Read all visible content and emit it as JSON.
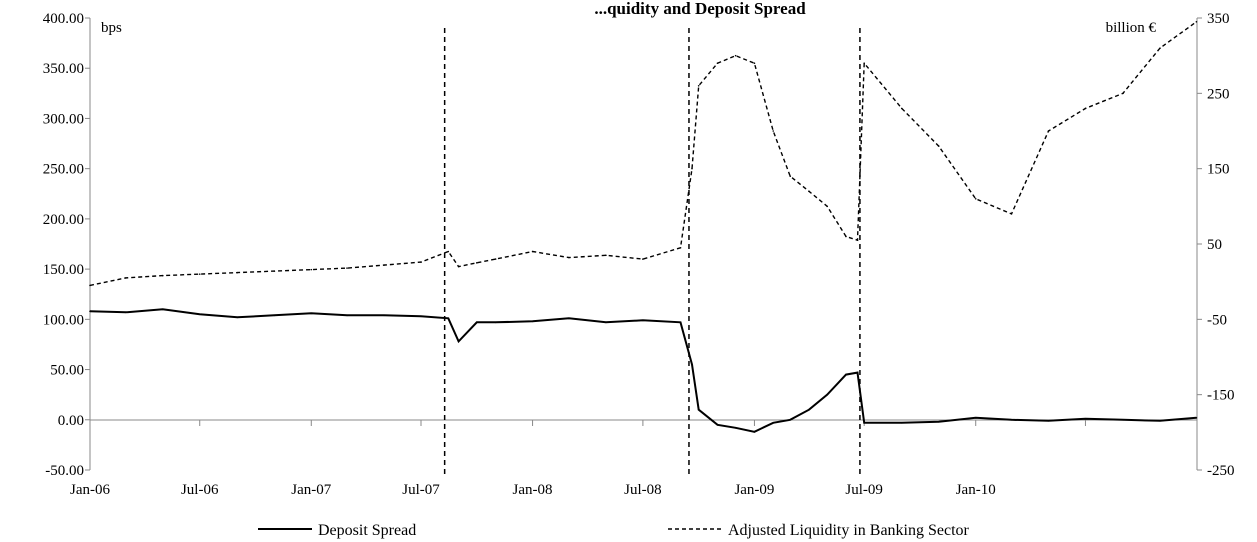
{
  "chart_data": {
    "type": "line",
    "title": "...quidity and Deposit Spread",
    "y_left_unit": "bps",
    "y_right_unit": "billion €",
    "y_left_ticks": [
      "400.00",
      "350.00",
      "300.00",
      "250.00",
      "200.00",
      "150.00",
      "100.00",
      "50.00",
      "0.00",
      "-50.00"
    ],
    "y_right_ticks": [
      "350",
      "250",
      "150",
      "50",
      "-50",
      "-150",
      "-250"
    ],
    "x_tick_labels": [
      "Jan-06",
      "Jul-06",
      "Jan-07",
      "Jul-07",
      "Jan-08",
      "Jul-08",
      "Jan-09",
      "Jul-09",
      "Jan-10"
    ],
    "ylim_left": [
      -50,
      400
    ],
    "ylim_right": [
      -250,
      350
    ],
    "xlim": [
      "2006-01",
      "2010-12"
    ],
    "grid": false,
    "legend_position": "bottom",
    "event_lines": [
      "2007-08-09",
      "2008-09-15",
      "2009-06-24"
    ],
    "series": [
      {
        "name": "Deposit Spread",
        "axis": "left",
        "style": "solid",
        "x": [
          "2006-01-01",
          "2006-03-01",
          "2006-05-01",
          "2006-07-01",
          "2006-09-01",
          "2006-11-01",
          "2007-01-01",
          "2007-03-01",
          "2007-05-01",
          "2007-07-01",
          "2007-08-15",
          "2007-09-01",
          "2007-10-01",
          "2007-11-01",
          "2008-01-01",
          "2008-03-01",
          "2008-05-01",
          "2008-07-01",
          "2008-09-01",
          "2008-09-20",
          "2008-10-01",
          "2008-11-01",
          "2008-12-01",
          "2009-01-01",
          "2009-02-01",
          "2009-03-01",
          "2009-04-01",
          "2009-05-01",
          "2009-06-01",
          "2009-06-20",
          "2009-07-01",
          "2009-09-01",
          "2009-11-01",
          "2010-01-01",
          "2010-03-01",
          "2010-05-01",
          "2010-07-01",
          "2010-09-01",
          "2010-11-01",
          "2010-12-31"
        ],
        "values": [
          108,
          107,
          110,
          105,
          102,
          104,
          106,
          104,
          104,
          103,
          101,
          78,
          97,
          97,
          98,
          101,
          97,
          99,
          97,
          55,
          10,
          -5,
          -8,
          -12,
          -3,
          0,
          10,
          25,
          45,
          47,
          -3,
          -3,
          -2,
          2,
          0,
          -1,
          1,
          0,
          -1,
          2
        ]
      },
      {
        "name": "Adjusted Liquidity in Banking Sector",
        "axis": "right",
        "style": "dashed",
        "x": [
          "2006-01-01",
          "2006-03-01",
          "2006-05-01",
          "2006-07-01",
          "2006-09-01",
          "2006-11-01",
          "2007-01-01",
          "2007-03-01",
          "2007-05-01",
          "2007-07-01",
          "2007-08-15",
          "2007-09-01",
          "2007-10-01",
          "2007-11-01",
          "2008-01-01",
          "2008-03-01",
          "2008-05-01",
          "2008-07-01",
          "2008-09-01",
          "2008-09-20",
          "2008-10-01",
          "2008-11-01",
          "2008-12-01",
          "2009-01-01",
          "2009-02-01",
          "2009-03-01",
          "2009-04-01",
          "2009-05-01",
          "2009-06-01",
          "2009-06-20",
          "2009-07-01",
          "2009-09-01",
          "2009-11-01",
          "2010-01-01",
          "2010-03-01",
          "2010-05-01",
          "2010-07-01",
          "2010-09-01",
          "2010-11-01",
          "2010-12-31"
        ],
        "values": [
          -5,
          5,
          8,
          10,
          12,
          14,
          16,
          18,
          22,
          26,
          40,
          20,
          25,
          30,
          40,
          32,
          35,
          30,
          45,
          150,
          260,
          290,
          300,
          290,
          200,
          140,
          120,
          100,
          60,
          55,
          290,
          230,
          180,
          110,
          90,
          200,
          230,
          250,
          310,
          345
        ]
      }
    ]
  }
}
